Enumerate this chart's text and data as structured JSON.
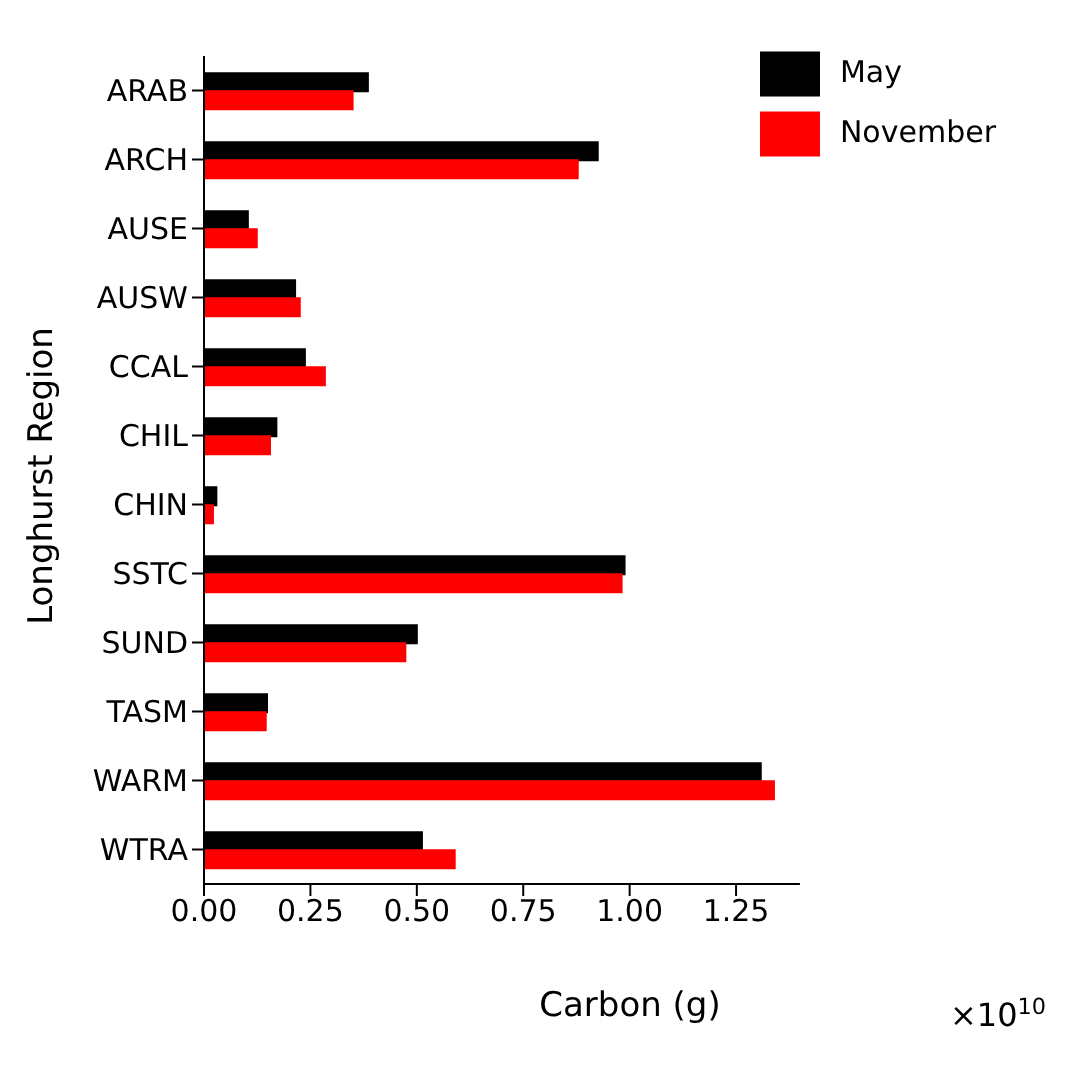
{
  "chart_data": {
    "type": "bar",
    "orientation": "horizontal",
    "xlabel": "Carbon (g)",
    "ylabel": "Longhurst Region",
    "categories": [
      "ARAB",
      "ARCH",
      "AUSE",
      "AUSW",
      "CCAL",
      "CHIL",
      "CHIN",
      "SSTC",
      "SUND",
      "TASM",
      "WARM",
      "WTRA"
    ],
    "series": [
      {
        "name": "May",
        "color": "#000000",
        "values": [
          0.385,
          0.925,
          0.103,
          0.214,
          0.237,
          0.17,
          0.029,
          0.988,
          0.5,
          0.148,
          1.308,
          0.512
        ]
      },
      {
        "name": "November",
        "color": "#ff0000",
        "values": [
          0.349,
          0.878,
          0.124,
          0.225,
          0.284,
          0.155,
          0.021,
          0.981,
          0.473,
          0.145,
          1.339,
          0.589
        ]
      }
    ],
    "xlim": [
      0,
      1.4
    ],
    "xticks": [
      {
        "value": 0,
        "label": "0.00"
      },
      {
        "value": 0.25,
        "label": "0.25"
      },
      {
        "value": 0.5,
        "label": "0.50"
      },
      {
        "value": 0.75,
        "label": "0.75"
      },
      {
        "value": 1,
        "label": "1.00"
      },
      {
        "value": 1.25,
        "label": "1.25"
      }
    ],
    "annotations": [
      "×10$^{10}$"
    ],
    "grid": false,
    "legend": "top right"
  }
}
